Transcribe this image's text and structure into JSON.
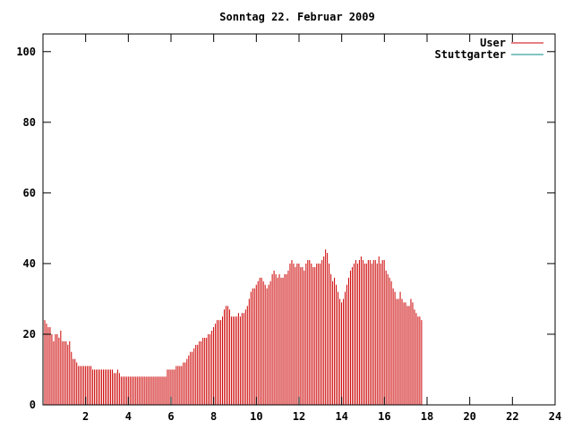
{
  "chart_data": {
    "type": "bar",
    "title": "Sonntag 22. Februar 2009",
    "xlabel": "",
    "ylabel": "",
    "xlim": [
      0,
      24
    ],
    "ylim": [
      0,
      105
    ],
    "x_ticks": [
      "2",
      "4",
      "6",
      "8",
      "10",
      "12",
      "14",
      "16",
      "18",
      "20",
      "22",
      "24"
    ],
    "y_ticks": [
      "0",
      "20",
      "40",
      "60",
      "80",
      "100"
    ],
    "grid": false,
    "legend_position": "top-right",
    "series": [
      {
        "name": "User",
        "color": "#cc0000",
        "x_start": 0,
        "x_step": 0.0833,
        "values": [
          26,
          24,
          23,
          22,
          22,
          20,
          18,
          20,
          20,
          19,
          21,
          18,
          18,
          18,
          17,
          18,
          15,
          13,
          13,
          12,
          11,
          11,
          11,
          11,
          11,
          11,
          11,
          11,
          10,
          10,
          10,
          10,
          10,
          10,
          10,
          10,
          10,
          10,
          10,
          10,
          9,
          9,
          10,
          9,
          8,
          8,
          8,
          8,
          8,
          8,
          8,
          8,
          8,
          8,
          8,
          8,
          8,
          8,
          8,
          8,
          8,
          8,
          8,
          8,
          8,
          8,
          8,
          8,
          8,
          8,
          10,
          10,
          10,
          10,
          10,
          11,
          11,
          11,
          11,
          12,
          12,
          13,
          14,
          15,
          15,
          16,
          17,
          17,
          18,
          18,
          19,
          19,
          19,
          20,
          20,
          21,
          22,
          23,
          24,
          24,
          24,
          25,
          27,
          28,
          28,
          27,
          25,
          25,
          25,
          25,
          26,
          25,
          26,
          26,
          27,
          28,
          30,
          32,
          33,
          33,
          34,
          35,
          36,
          36,
          35,
          34,
          33,
          34,
          35,
          37,
          38,
          37,
          36,
          37,
          36,
          36,
          37,
          37,
          38,
          40,
          41,
          40,
          39,
          40,
          40,
          39,
          39,
          38,
          40,
          41,
          41,
          40,
          39,
          39,
          40,
          40,
          40,
          41,
          42,
          44,
          43,
          40,
          37,
          35,
          36,
          34,
          32,
          30,
          29,
          30,
          32,
          34,
          36,
          38,
          39,
          40,
          41,
          40,
          41,
          42,
          41,
          40,
          40,
          41,
          41,
          40,
          41,
          41,
          40,
          42,
          40,
          41,
          41,
          38,
          37,
          36,
          35,
          33,
          32,
          30,
          30,
          32,
          30,
          29,
          29,
          28,
          28,
          30,
          29,
          27,
          26,
          25,
          25,
          24
        ]
      },
      {
        "name": "Stuttgarter",
        "color": "#008b8b",
        "values": []
      }
    ]
  }
}
